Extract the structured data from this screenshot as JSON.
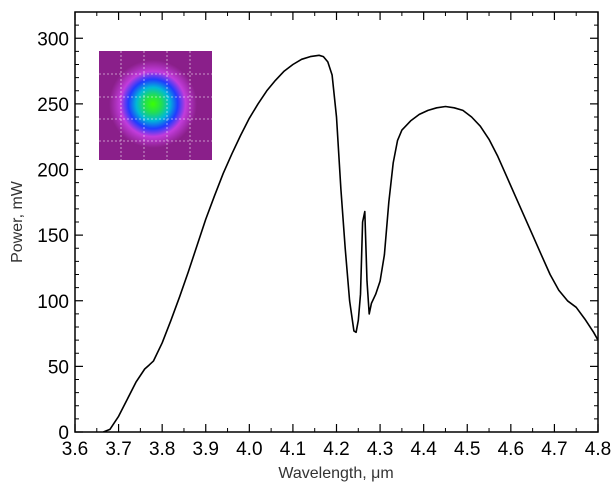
{
  "chart_data": {
    "type": "line",
    "title": "",
    "xlabel": "Wavelength, μm",
    "ylabel": "Power, mW",
    "xlim": [
      3.6,
      4.8
    ],
    "ylim": [
      0,
      320
    ],
    "x_ticks": [
      3.6,
      3.7,
      3.8,
      3.9,
      4.0,
      4.1,
      4.2,
      4.3,
      4.4,
      4.5,
      4.6,
      4.7,
      4.8
    ],
    "x_tick_labels": [
      "3.6",
      "3.7",
      "3.8",
      "3.9",
      "4.0",
      "4.1",
      "4.2",
      "4.3",
      "4.4",
      "4.5",
      "4.6",
      "4.7",
      "4.8"
    ],
    "y_ticks": [
      0,
      50,
      100,
      150,
      200,
      250,
      300
    ],
    "y_tick_labels": [
      "0",
      "50",
      "100",
      "150",
      "200",
      "250",
      "300"
    ],
    "grid": false,
    "legend": "none",
    "inset": "beam-profile-image",
    "series": [
      {
        "color": "#000000",
        "points": [
          [
            3.665,
            0
          ],
          [
            3.68,
            2
          ],
          [
            3.7,
            12
          ],
          [
            3.72,
            25
          ],
          [
            3.74,
            38
          ],
          [
            3.76,
            48
          ],
          [
            3.77,
            51
          ],
          [
            3.78,
            54
          ],
          [
            3.8,
            68
          ],
          [
            3.82,
            85
          ],
          [
            3.84,
            103
          ],
          [
            3.86,
            122
          ],
          [
            3.88,
            142
          ],
          [
            3.9,
            162
          ],
          [
            3.92,
            180
          ],
          [
            3.94,
            197
          ],
          [
            3.96,
            212
          ],
          [
            3.98,
            226
          ],
          [
            4.0,
            239
          ],
          [
            4.02,
            250
          ],
          [
            4.04,
            260
          ],
          [
            4.06,
            268
          ],
          [
            4.08,
            275
          ],
          [
            4.1,
            280
          ],
          [
            4.12,
            284
          ],
          [
            4.14,
            286
          ],
          [
            4.16,
            287
          ],
          [
            4.17,
            286
          ],
          [
            4.18,
            282
          ],
          [
            4.19,
            272
          ],
          [
            4.2,
            240
          ],
          [
            4.21,
            185
          ],
          [
            4.22,
            140
          ],
          [
            4.23,
            100
          ],
          [
            4.24,
            77
          ],
          [
            4.245,
            76
          ],
          [
            4.25,
            85
          ],
          [
            4.255,
            105
          ],
          [
            4.26,
            160
          ],
          [
            4.265,
            168
          ],
          [
            4.27,
            115
          ],
          [
            4.275,
            90
          ],
          [
            4.28,
            98
          ],
          [
            4.29,
            105
          ],
          [
            4.3,
            115
          ],
          [
            4.31,
            135
          ],
          [
            4.32,
            175
          ],
          [
            4.33,
            205
          ],
          [
            4.34,
            222
          ],
          [
            4.35,
            230
          ],
          [
            4.37,
            237
          ],
          [
            4.39,
            242
          ],
          [
            4.41,
            245
          ],
          [
            4.43,
            247
          ],
          [
            4.45,
            248
          ],
          [
            4.47,
            247
          ],
          [
            4.49,
            245
          ],
          [
            4.51,
            240
          ],
          [
            4.53,
            233
          ],
          [
            4.55,
            223
          ],
          [
            4.57,
            210
          ],
          [
            4.59,
            195
          ],
          [
            4.61,
            180
          ],
          [
            4.63,
            165
          ],
          [
            4.65,
            150
          ],
          [
            4.67,
            135
          ],
          [
            4.69,
            120
          ],
          [
            4.71,
            108
          ],
          [
            4.73,
            100
          ],
          [
            4.75,
            95
          ],
          [
            4.77,
            86
          ],
          [
            4.79,
            76
          ],
          [
            4.8,
            70
          ]
        ]
      }
    ]
  }
}
